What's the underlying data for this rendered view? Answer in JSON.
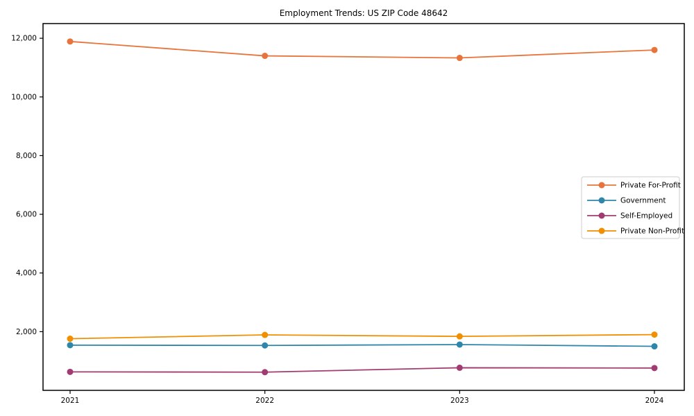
{
  "title": "Employment Trends: US ZIP Code 48642",
  "chart_data": {
    "type": "line",
    "title": "Employment Trends: US ZIP Code 48642",
    "categories": [
      "2021",
      "2022",
      "2023",
      "2024"
    ],
    "series": [
      {
        "name": "Private For-Profit",
        "color": "#E8743B",
        "values": [
          11890,
          11400,
          11330,
          11600
        ]
      },
      {
        "name": "Government",
        "color": "#2E86AB",
        "values": [
          1540,
          1530,
          1560,
          1500
        ]
      },
      {
        "name": "Self-Employed",
        "color": "#A23B72",
        "values": [
          630,
          620,
          770,
          760
        ]
      },
      {
        "name": "Private Non-Profit",
        "color": "#F18F01",
        "values": [
          1760,
          1890,
          1840,
          1900
        ]
      }
    ],
    "xlabel": "",
    "ylabel": "",
    "ylim": [
      0,
      12500
    ],
    "yticks": [
      {
        "value": 2000,
        "label": "2,000"
      },
      {
        "value": 4000,
        "label": "4,000"
      },
      {
        "value": 6000,
        "label": "6,000"
      },
      {
        "value": 8000,
        "label": "8,000"
      },
      {
        "value": 10000,
        "label": "10,000"
      },
      {
        "value": 12000,
        "label": "12,000"
      }
    ],
    "xtick_labels": [
      "2021",
      "2022",
      "2023",
      "2024"
    ],
    "grid": false,
    "legend": {
      "position": "center-right",
      "items": [
        "Private For-Profit",
        "Government",
        "Self-Employed",
        "Private Non-Profit"
      ]
    },
    "colors": {
      "axis": "#000000",
      "legend_border": "#cccccc",
      "background": "#ffffff"
    }
  }
}
